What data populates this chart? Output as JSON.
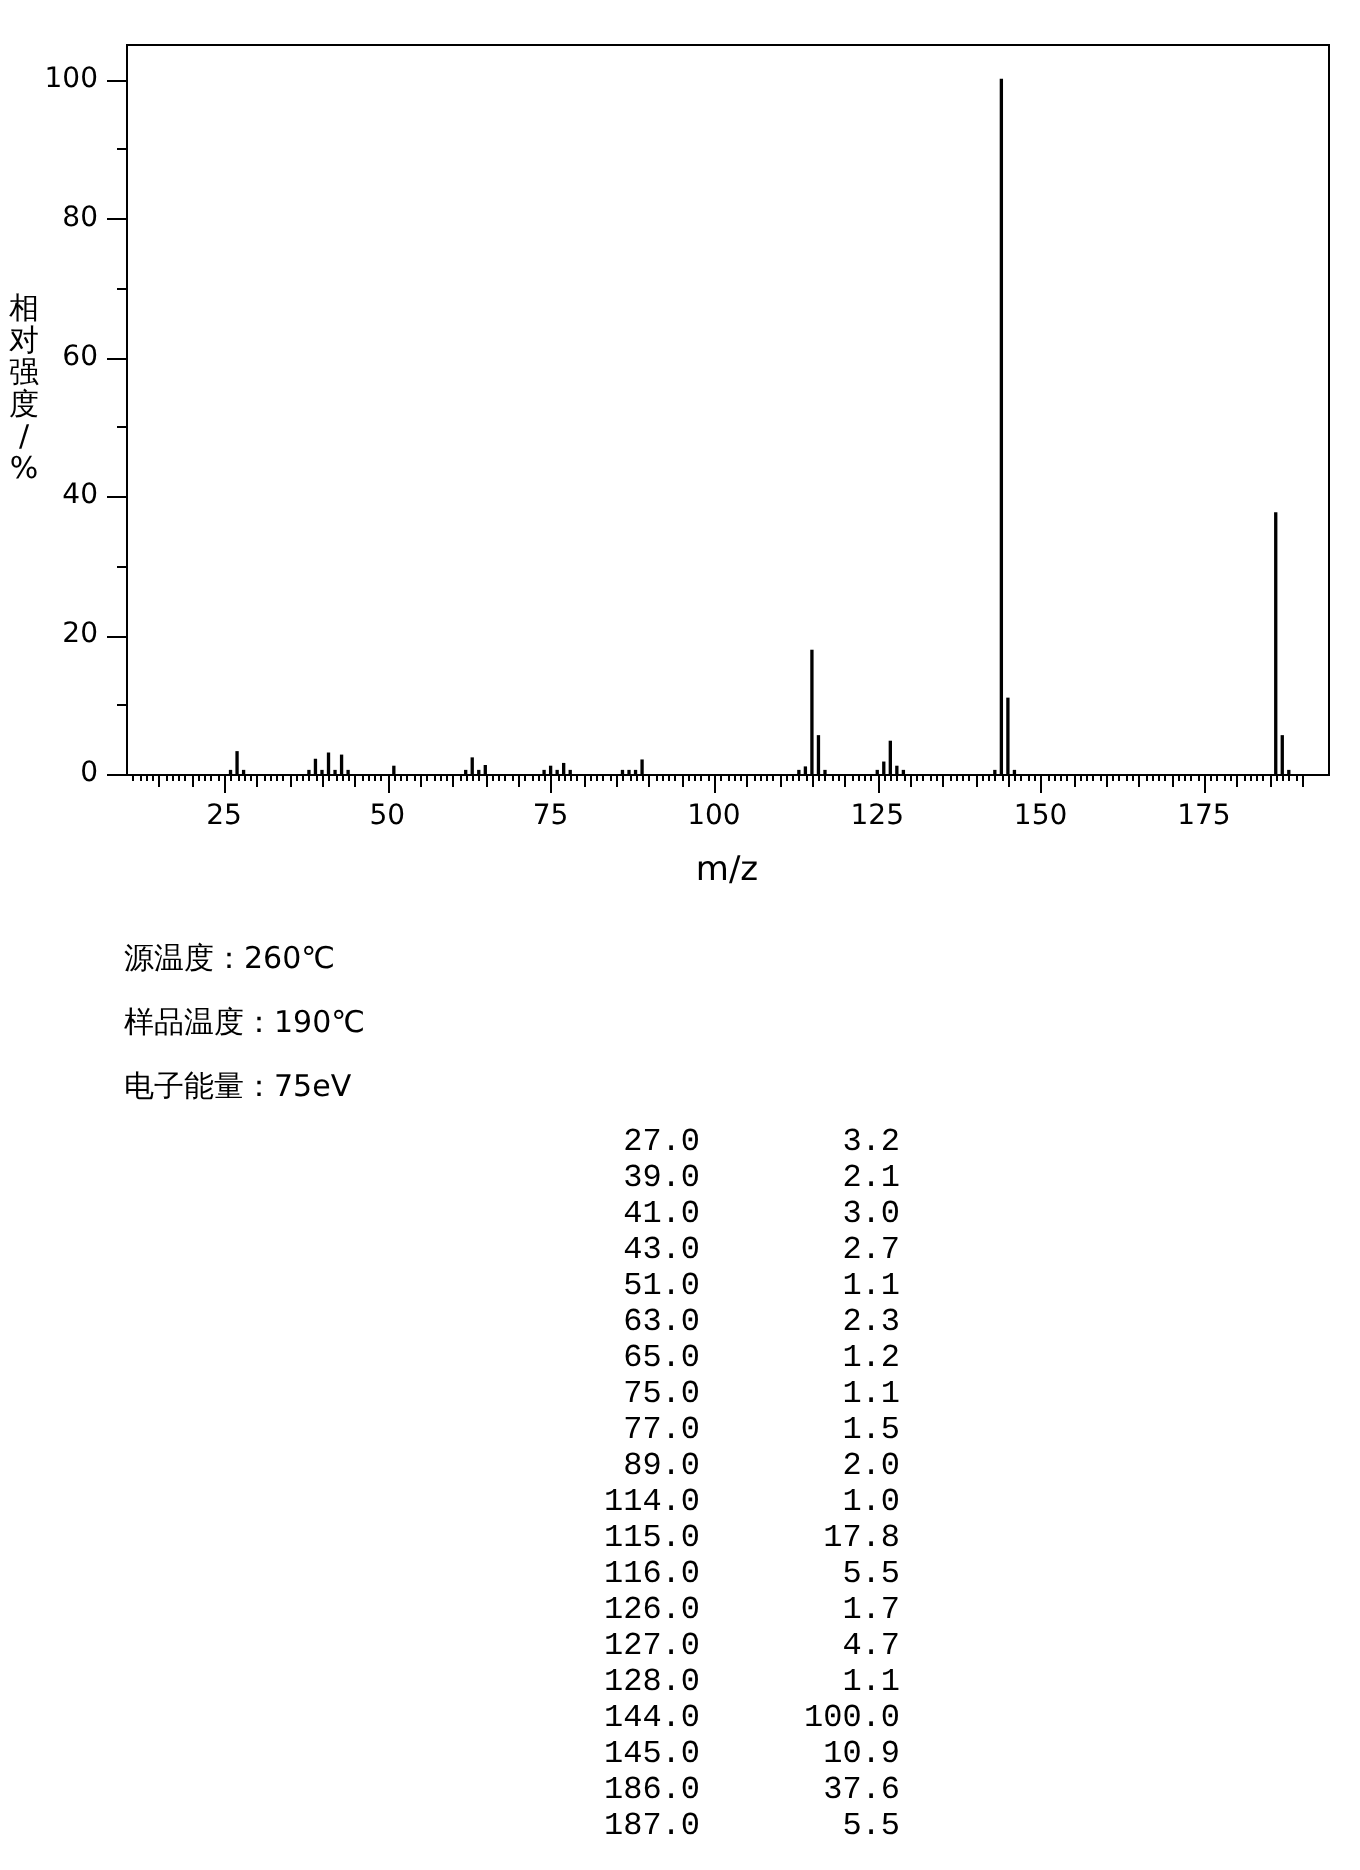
{
  "chart_data": [
    {
      "type": "bar",
      "xlabel": "m/z",
      "ylabel": "相对强度/%",
      "x": [
        26,
        27,
        28,
        38,
        39,
        40,
        41,
        42,
        43,
        44,
        51,
        62,
        63,
        64,
        65,
        74,
        75,
        76,
        77,
        78,
        86,
        87,
        88,
        89,
        113,
        114,
        115,
        116,
        117,
        125,
        126,
        127,
        128,
        129,
        143,
        144,
        145,
        146,
        186,
        187,
        188
      ],
      "values": [
        0.5,
        3.2,
        0.5,
        0.5,
        2.1,
        0.5,
        3.0,
        0.5,
        2.7,
        0.5,
        1.1,
        0.5,
        2.3,
        0.5,
        1.2,
        0.5,
        1.1,
        0.5,
        1.5,
        0.5,
        0.5,
        0.5,
        0.5,
        2.0,
        0.5,
        1.0,
        17.8,
        5.5,
        0.5,
        0.5,
        1.7,
        4.7,
        1.1,
        0.5,
        0.5,
        100.0,
        10.9,
        0.5,
        37.6,
        5.5,
        0.5
      ],
      "color": "#000000",
      "xlim": [
        10,
        194
      ],
      "ylim": [
        0,
        105
      ],
      "xticks": [
        {
          "value": 11,
          "label": null
        },
        {
          "value": 12,
          "label": null
        },
        {
          "value": 13,
          "label": null
        },
        {
          "value": 14,
          "label": null
        },
        {
          "value": 15,
          "label": null
        },
        {
          "value": 16,
          "label": null
        },
        {
          "value": 17,
          "label": null
        },
        {
          "value": 18,
          "label": null
        },
        {
          "value": 19,
          "label": null
        },
        {
          "value": 20,
          "label": null
        },
        {
          "value": 21,
          "label": null
        },
        {
          "value": 22,
          "label": null
        },
        {
          "value": 23,
          "label": null
        },
        {
          "value": 24,
          "label": null
        },
        25,
        {
          "value": 26,
          "label": null
        },
        {
          "value": 27,
          "label": null
        },
        {
          "value": 28,
          "label": null
        },
        {
          "value": 29,
          "label": null
        },
        {
          "value": 30,
          "label": null
        },
        {
          "value": 31,
          "label": null
        },
        {
          "value": 32,
          "label": null
        },
        {
          "value": 33,
          "label": null
        },
        {
          "value": 34,
          "label": null
        },
        {
          "value": 35,
          "label": null
        },
        {
          "value": 36,
          "label": null
        },
        {
          "value": 37,
          "label": null
        },
        {
          "value": 38,
          "label": null
        },
        {
          "value": 39,
          "label": null
        },
        {
          "value": 40,
          "label": null
        },
        {
          "value": 41,
          "label": null
        },
        {
          "value": 42,
          "label": null
        },
        {
          "value": 43,
          "label": null
        },
        {
          "value": 44,
          "label": null
        },
        {
          "value": 45,
          "label": null
        },
        {
          "value": 46,
          "label": null
        },
        {
          "value": 47,
          "label": null
        },
        {
          "value": 48,
          "label": null
        },
        {
          "value": 49,
          "label": null
        },
        50,
        {
          "value": 51,
          "label": null
        },
        {
          "value": 52,
          "label": null
        },
        {
          "value": 53,
          "label": null
        },
        {
          "value": 54,
          "label": null
        },
        {
          "value": 55,
          "label": null
        },
        {
          "value": 56,
          "label": null
        },
        {
          "value": 57,
          "label": null
        },
        {
          "value": 58,
          "label": null
        },
        {
          "value": 59,
          "label": null
        },
        {
          "value": 60,
          "label": null
        },
        {
          "value": 61,
          "label": null
        },
        {
          "value": 62,
          "label": null
        },
        {
          "value": 63,
          "label": null
        },
        {
          "value": 64,
          "label": null
        },
        {
          "value": 65,
          "label": null
        },
        {
          "value": 66,
          "label": null
        },
        {
          "value": 67,
          "label": null
        },
        {
          "value": 68,
          "label": null
        },
        {
          "value": 69,
          "label": null
        },
        {
          "value": 70,
          "label": null
        },
        {
          "value": 71,
          "label": null
        },
        {
          "value": 72,
          "label": null
        },
        {
          "value": 73,
          "label": null
        },
        {
          "value": 74,
          "label": null
        },
        75,
        {
          "value": 76,
          "label": null
        },
        {
          "value": 77,
          "label": null
        },
        {
          "value": 78,
          "label": null
        },
        {
          "value": 79,
          "label": null
        },
        {
          "value": 80,
          "label": null
        },
        {
          "value": 81,
          "label": null
        },
        {
          "value": 82,
          "label": null
        },
        {
          "value": 83,
          "label": null
        },
        {
          "value": 84,
          "label": null
        },
        {
          "value": 85,
          "label": null
        },
        {
          "value": 86,
          "label": null
        },
        {
          "value": 87,
          "label": null
        },
        {
          "value": 88,
          "label": null
        },
        {
          "value": 89,
          "label": null
        },
        {
          "value": 90,
          "label": null
        },
        {
          "value": 91,
          "label": null
        },
        {
          "value": 92,
          "label": null
        },
        {
          "value": 93,
          "label": null
        },
        {
          "value": 94,
          "label": null
        },
        {
          "value": 95,
          "label": null
        },
        {
          "value": 96,
          "label": null
        },
        {
          "value": 97,
          "label": null
        },
        {
          "value": 98,
          "label": null
        },
        {
          "value": 99,
          "label": null
        },
        100,
        {
          "value": 101,
          "label": null
        },
        {
          "value": 102,
          "label": null
        },
        {
          "value": 103,
          "label": null
        },
        {
          "value": 104,
          "label": null
        },
        {
          "value": 105,
          "label": null
        },
        {
          "value": 106,
          "label": null
        },
        {
          "value": 107,
          "label": null
        },
        {
          "value": 108,
          "label": null
        },
        {
          "value": 109,
          "label": null
        },
        {
          "value": 110,
          "label": null
        },
        {
          "value": 111,
          "label": null
        },
        {
          "value": 112,
          "label": null
        },
        {
          "value": 113,
          "label": null
        },
        {
          "value": 114,
          "label": null
        },
        {
          "value": 115,
          "label": null
        },
        {
          "value": 116,
          "label": null
        },
        {
          "value": 117,
          "label": null
        },
        {
          "value": 118,
          "label": null
        },
        {
          "value": 119,
          "label": null
        },
        {
          "value": 120,
          "label": null
        },
        {
          "value": 121,
          "label": null
        },
        {
          "value": 122,
          "label": null
        },
        {
          "value": 123,
          "label": null
        },
        {
          "value": 124,
          "label": null
        },
        125,
        {
          "value": 126,
          "label": null
        },
        {
          "value": 127,
          "label": null
        },
        {
          "value": 128,
          "label": null
        },
        {
          "value": 129,
          "label": null
        },
        {
          "value": 130,
          "label": null
        },
        {
          "value": 131,
          "label": null
        },
        {
          "value": 132,
          "label": null
        },
        {
          "value": 133,
          "label": null
        },
        {
          "value": 134,
          "label": null
        },
        {
          "value": 135,
          "label": null
        },
        {
          "value": 136,
          "label": null
        },
        {
          "value": 137,
          "label": null
        },
        {
          "value": 138,
          "label": null
        },
        {
          "value": 139,
          "label": null
        },
        {
          "value": 140,
          "label": null
        },
        {
          "value": 141,
          "label": null
        },
        {
          "value": 142,
          "label": null
        },
        {
          "value": 143,
          "label": null
        },
        {
          "value": 144,
          "label": null
        },
        {
          "value": 145,
          "label": null
        },
        {
          "value": 146,
          "label": null
        },
        {
          "value": 147,
          "label": null
        },
        {
          "value": 148,
          "label": null
        },
        {
          "value": 149,
          "label": null
        },
        150,
        {
          "value": 151,
          "label": null
        },
        {
          "value": 152,
          "label": null
        },
        {
          "value": 153,
          "label": null
        },
        {
          "value": 154,
          "label": null
        },
        {
          "value": 155,
          "label": null
        },
        {
          "value": 156,
          "label": null
        },
        {
          "value": 157,
          "label": null
        },
        {
          "value": 158,
          "label": null
        },
        {
          "value": 159,
          "label": null
        },
        {
          "value": 160,
          "label": null
        },
        {
          "value": 161,
          "label": null
        },
        {
          "value": 162,
          "label": null
        },
        {
          "value": 163,
          "label": null
        },
        {
          "value": 164,
          "label": null
        },
        {
          "value": 165,
          "label": null
        },
        {
          "value": 166,
          "label": null
        },
        {
          "value": 167,
          "label": null
        },
        {
          "value": 168,
          "label": null
        },
        {
          "value": 169,
          "label": null
        },
        {
          "value": 170,
          "label": null
        },
        {
          "value": 171,
          "label": null
        },
        {
          "value": 172,
          "label": null
        },
        {
          "value": 173,
          "label": null
        },
        {
          "value": 174,
          "label": null
        },
        175,
        {
          "value": 176,
          "label": null
        },
        {
          "value": 177,
          "label": null
        },
        {
          "value": 178,
          "label": null
        },
        {
          "value": 179,
          "label": null
        },
        {
          "value": 180,
          "label": null
        },
        {
          "value": 181,
          "label": null
        },
        {
          "value": 182,
          "label": null
        },
        {
          "value": 183,
          "label": null
        },
        {
          "value": 184,
          "label": null
        },
        {
          "value": 185,
          "label": null
        },
        {
          "value": 186,
          "label": null
        },
        {
          "value": 187,
          "label": null
        },
        {
          "value": 188,
          "label": null
        },
        {
          "value": 189,
          "label": null
        },
        {
          "value": 190,
          "label": null
        }
      ],
      "yticks": [
        0,
        {
          "value": 10,
          "label": null
        },
        20,
        {
          "value": 30,
          "label": null
        },
        40,
        {
          "value": 50,
          "label": null
        },
        60,
        {
          "value": 70,
          "label": null
        },
        80,
        {
          "value": 90,
          "label": null
        },
        100
      ],
      "annotations": [
        "源温度：260℃",
        "样品温度：190℃",
        "电子能量：75eV"
      ]
    },
    {
      "type": "other",
      "annotations": [
        "27.0",
        "3.2",
        "39.0",
        "2.1",
        "41.0",
        "3.0",
        "43.0",
        "2.7",
        "51.0",
        "1.1",
        "63.0",
        "2.3",
        "65.0",
        "1.2",
        "75.0",
        "1.1",
        "77.0",
        "1.5",
        "89.0",
        "2.0",
        "114.0",
        "1.0",
        "115.0",
        "17.8",
        "116.0",
        "5.5",
        "126.0",
        "1.7",
        "127.0",
        "4.7",
        "128.0",
        "1.1",
        "144.0",
        "100.0",
        "145.0",
        "10.9",
        "186.0",
        "37.6",
        "187.0",
        "5.5"
      ]
    }
  ]
}
